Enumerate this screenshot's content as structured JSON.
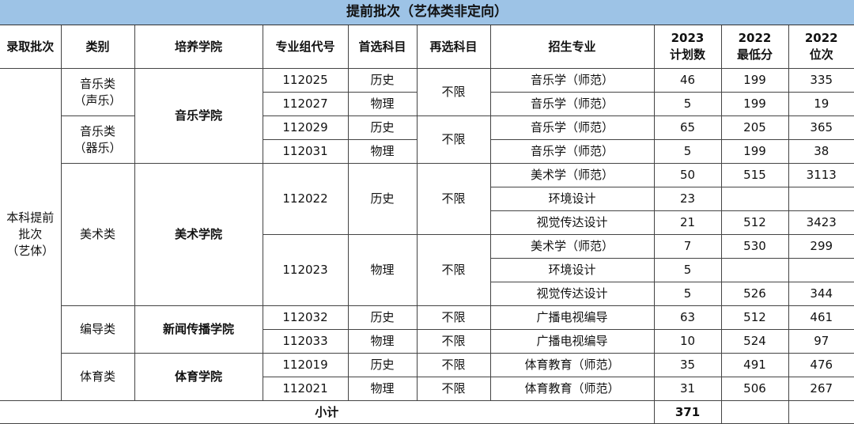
{
  "title": "提前批次（艺体类非定向）",
  "colors": {
    "title_bg": "#9dc3e6"
  },
  "headers": [
    "录取批次",
    "类别",
    "培养学院",
    "专业组代号",
    "首选科目",
    "再选科目",
    "招生专业",
    "2023\n计划数",
    "2022\n最低分",
    "2022\n位次"
  ],
  "rows": [
    [
      {
        "t": "本科提前\n批次\n（艺体）",
        "rs": 14
      },
      {
        "t": "音乐类\n（声乐）",
        "rs": 2
      },
      {
        "t": "音乐学院",
        "rs": 4,
        "b": true
      },
      {
        "t": "112025"
      },
      {
        "t": "历史"
      },
      {
        "t": "不限",
        "rs": 2
      },
      {
        "t": "音乐学（师范）"
      },
      {
        "t": "46"
      },
      {
        "t": "199"
      },
      {
        "t": "335"
      }
    ],
    [
      {
        "t": "112027"
      },
      {
        "t": "物理"
      },
      {
        "t": "音乐学（师范）"
      },
      {
        "t": "5"
      },
      {
        "t": "199"
      },
      {
        "t": "19"
      }
    ],
    [
      {
        "t": "音乐类\n（器乐）",
        "rs": 2
      },
      {
        "t": "112029"
      },
      {
        "t": "历史"
      },
      {
        "t": "不限",
        "rs": 2
      },
      {
        "t": "音乐学（师范）"
      },
      {
        "t": "65"
      },
      {
        "t": "205"
      },
      {
        "t": "365"
      }
    ],
    [
      {
        "t": "112031"
      },
      {
        "t": "物理"
      },
      {
        "t": "音乐学（师范）"
      },
      {
        "t": "5"
      },
      {
        "t": "199"
      },
      {
        "t": "38"
      }
    ],
    [
      {
        "t": "美术类",
        "rs": 6
      },
      {
        "t": "美术学院",
        "rs": 6,
        "b": true
      },
      {
        "t": "112022",
        "rs": 3
      },
      {
        "t": "历史",
        "rs": 3
      },
      {
        "t": "不限",
        "rs": 3
      },
      {
        "t": "美术学（师范）"
      },
      {
        "t": "50"
      },
      {
        "t": "515"
      },
      {
        "t": "3113"
      }
    ],
    [
      {
        "t": "环境设计"
      },
      {
        "t": "23"
      },
      {
        "t": ""
      },
      {
        "t": ""
      }
    ],
    [
      {
        "t": "视觉传达设计"
      },
      {
        "t": "21"
      },
      {
        "t": "512"
      },
      {
        "t": "3423"
      }
    ],
    [
      {
        "t": "112023",
        "rs": 3
      },
      {
        "t": "物理",
        "rs": 3
      },
      {
        "t": "不限",
        "rs": 3
      },
      {
        "t": "美术学（师范）"
      },
      {
        "t": "7"
      },
      {
        "t": "530"
      },
      {
        "t": "299"
      }
    ],
    [
      {
        "t": "环境设计"
      },
      {
        "t": "5"
      },
      {
        "t": ""
      },
      {
        "t": ""
      }
    ],
    [
      {
        "t": "视觉传达设计"
      },
      {
        "t": "5"
      },
      {
        "t": "526"
      },
      {
        "t": "344"
      }
    ],
    [
      {
        "t": "编导类",
        "rs": 2
      },
      {
        "t": "新闻传播学院",
        "rs": 2,
        "b": true
      },
      {
        "t": "112032"
      },
      {
        "t": "历史"
      },
      {
        "t": "不限"
      },
      {
        "t": "广播电视编导"
      },
      {
        "t": "63"
      },
      {
        "t": "512"
      },
      {
        "t": "461"
      }
    ],
    [
      {
        "t": "112033"
      },
      {
        "t": "物理"
      },
      {
        "t": "不限"
      },
      {
        "t": "广播电视编导"
      },
      {
        "t": "10"
      },
      {
        "t": "524"
      },
      {
        "t": "97"
      }
    ],
    [
      {
        "t": "体育类",
        "rs": 2
      },
      {
        "t": "体育学院",
        "rs": 2,
        "b": true
      },
      {
        "t": "112019"
      },
      {
        "t": "历史"
      },
      {
        "t": "不限"
      },
      {
        "t": "体育教育（师范）"
      },
      {
        "t": "35"
      },
      {
        "t": "491"
      },
      {
        "t": "476"
      }
    ],
    [
      {
        "t": "112021"
      },
      {
        "t": "物理"
      },
      {
        "t": "不限"
      },
      {
        "t": "体育教育（师范）"
      },
      {
        "t": "31"
      },
      {
        "t": "506"
      },
      {
        "t": "267"
      }
    ]
  ],
  "subtotal": {
    "label": "小计",
    "plan_total": "371"
  }
}
